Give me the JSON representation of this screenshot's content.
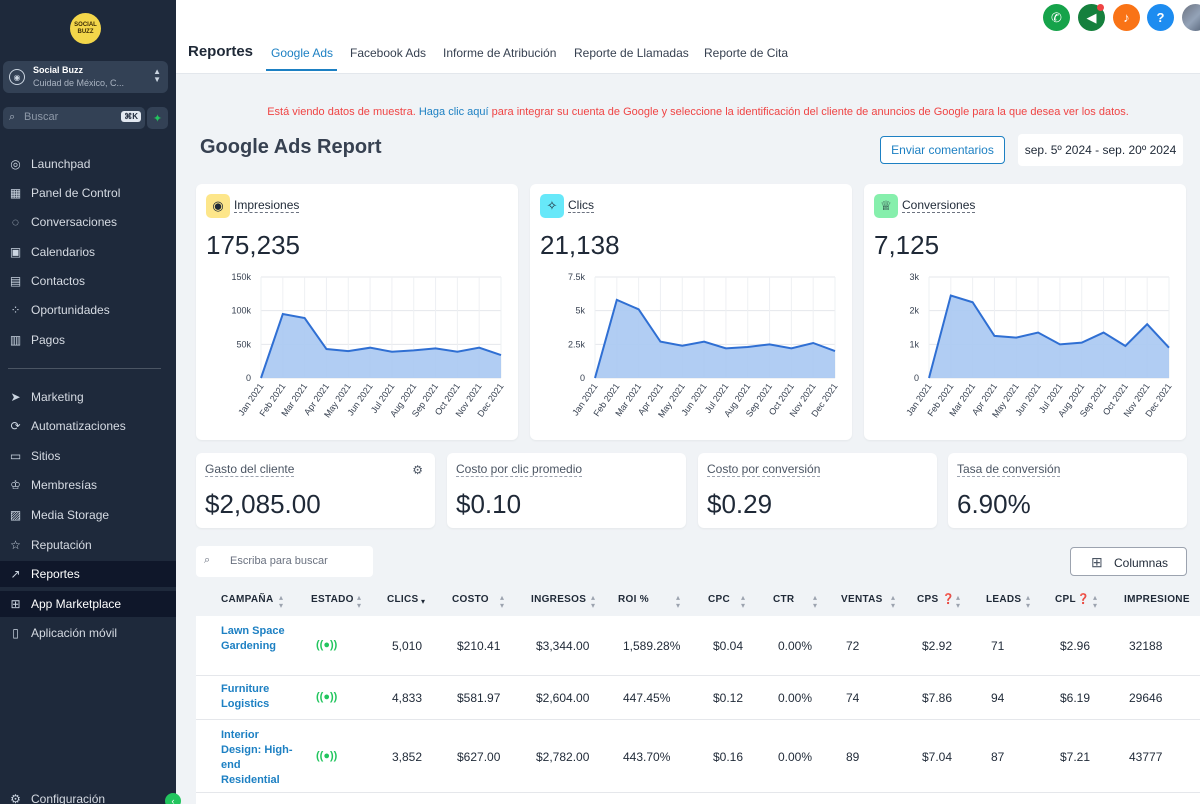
{
  "sidebar": {
    "logo_text": "SOCIAL BUZZ",
    "account_name": "Social Buzz",
    "account_location": "Cuidad de México, C...",
    "search_placeholder": "Buscar",
    "search_shortcut": "⌘K",
    "items": [
      {
        "label": "Launchpad",
        "icon": "rocket-icon"
      },
      {
        "label": "Panel de Control",
        "icon": "grid-icon"
      },
      {
        "label": "Conversaciones",
        "icon": "chat-icon"
      },
      {
        "label": "Calendarios",
        "icon": "calendar-icon"
      },
      {
        "label": "Contactos",
        "icon": "contacts-icon"
      },
      {
        "label": "Oportunidades",
        "icon": "opportunities-icon"
      },
      {
        "label": "Pagos",
        "icon": "payments-icon"
      },
      {
        "label": "Marketing",
        "icon": "send-icon"
      },
      {
        "label": "Automatizaciones",
        "icon": "automation-icon"
      },
      {
        "label": "Sitios",
        "icon": "sites-icon"
      },
      {
        "label": "Membresías",
        "icon": "membership-icon"
      },
      {
        "label": "Media Storage",
        "icon": "image-icon"
      },
      {
        "label": "Reputación",
        "icon": "star-icon"
      },
      {
        "label": "Reportes",
        "icon": "trend-icon"
      },
      {
        "label": "App Marketplace",
        "icon": "apps-icon"
      },
      {
        "label": "Aplicación móvil",
        "icon": "mobile-icon"
      },
      {
        "label": "Configuración",
        "icon": "gear-icon"
      }
    ]
  },
  "header": {
    "title": "Reportes",
    "tabs": [
      "Google Ads",
      "Facebook Ads",
      "Informe de Atribución",
      "Reporte de Llamadas",
      "Reporte de Cita"
    ],
    "active_tab": "Google Ads"
  },
  "banner": {
    "prefix": "Está viendo datos de muestra. ",
    "link": "Haga clic aquí",
    "suffix": " para integrar su cuenta de Google y seleccione la identificación del cliente de anuncios de Google para la que desea ver los datos."
  },
  "report": {
    "title": "Google Ads Report",
    "feedback_label": "Enviar comentarios",
    "date_range": "sep. 5º 2024 - sep. 20º 2024"
  },
  "kpis": [
    {
      "label": "Impresiones",
      "value": "175,235",
      "icon": "eye-icon",
      "color": "#fde68a"
    },
    {
      "label": "Clics",
      "value": "21,138",
      "icon": "cursor-click-icon",
      "color": "#67e8f9"
    },
    {
      "label": "Conversiones",
      "value": "7,125",
      "icon": "trophy-icon",
      "color": "#86efac"
    }
  ],
  "chart_data": [
    {
      "type": "area",
      "title": "Impresiones",
      "x": [
        "Jan 2021",
        "Feb 2021",
        "Mar 2021",
        "Apr 2021",
        "May 2021",
        "Jun 2021",
        "Jul 2021",
        "Aug 2021",
        "Sep 2021",
        "Oct 2021",
        "Nov 2021",
        "Dec 2021"
      ],
      "values": [
        0,
        95000,
        89000,
        43000,
        40000,
        45000,
        39000,
        41000,
        44000,
        39000,
        45000,
        34000
      ],
      "yticks": [
        "0",
        "50k",
        "100k",
        "150k"
      ],
      "ylim": [
        0,
        150000
      ]
    },
    {
      "type": "area",
      "title": "Clics",
      "x": [
        "Jan 2021",
        "Feb 2021",
        "Mar 2021",
        "Apr 2021",
        "May 2021",
        "Jun 2021",
        "Jul 2021",
        "Aug 2021",
        "Sep 2021",
        "Oct 2021",
        "Nov 2021",
        "Dec 2021"
      ],
      "values": [
        0,
        5800,
        5100,
        2700,
        2400,
        2700,
        2200,
        2300,
        2500,
        2200,
        2600,
        2000
      ],
      "yticks": [
        "0",
        "2.5k",
        "5k",
        "7.5k"
      ],
      "ylim": [
        0,
        7500
      ]
    },
    {
      "type": "area",
      "title": "Conversiones",
      "x": [
        "Jan 2021",
        "Feb 2021",
        "Mar 2021",
        "Apr 2021",
        "May 2021",
        "Jun 2021",
        "Jul 2021",
        "Aug 2021",
        "Sep 2021",
        "Oct 2021",
        "Nov 2021",
        "Dec 2021"
      ],
      "values": [
        0,
        2450,
        2250,
        1250,
        1200,
        1350,
        1000,
        1050,
        1350,
        950,
        1600,
        900
      ],
      "yticks": [
        "0",
        "1k",
        "2k",
        "3k"
      ],
      "ylim": [
        0,
        3000
      ]
    }
  ],
  "stats": [
    {
      "label": "Gasto del cliente",
      "value": "$2,085.00"
    },
    {
      "label": "Costo por clic promedio",
      "value": "$0.10"
    },
    {
      "label": "Costo por conversión",
      "value": "$0.29"
    },
    {
      "label": "Tasa de conversión",
      "value": "6.90%"
    }
  ],
  "table": {
    "search_placeholder": "Escriba para buscar",
    "columns_label": "Columnas",
    "headers": [
      "CAMPAÑA",
      "ESTADO",
      "CLICS",
      "COSTO",
      "INGRESOS",
      "ROI %",
      "CPC",
      "CTR",
      "VENTAS",
      "CPS",
      "LEADS",
      "CPL",
      "IMPRESIONE"
    ],
    "rows": [
      {
        "campaign": "Lawn Space Gardening",
        "clics": "5,010",
        "costo": "$210.41",
        "ingresos": "$3,344.00",
        "roi": "1,589.28%",
        "cpc": "$0.04",
        "ctr": "0.00%",
        "ventas": "72",
        "cps": "$2.92",
        "leads": "71",
        "cpl": "$2.96",
        "impresiones": "32188"
      },
      {
        "campaign": "Furniture Logistics",
        "clics": "4,833",
        "costo": "$581.97",
        "ingresos": "$2,604.00",
        "roi": "447.45%",
        "cpc": "$0.12",
        "ctr": "0.00%",
        "ventas": "74",
        "cps": "$7.86",
        "leads": "94",
        "cpl": "$6.19",
        "impresiones": "29646"
      },
      {
        "campaign": "Interior Design: High-end Residential",
        "clics": "3,852",
        "costo": "$627.00",
        "ingresos": "$2,782.00",
        "roi": "443.70%",
        "cpc": "$0.16",
        "ctr": "0.00%",
        "ventas": "89",
        "cps": "$7.04",
        "leads": "87",
        "cpl": "$7.21",
        "impresiones": "43777"
      }
    ]
  }
}
